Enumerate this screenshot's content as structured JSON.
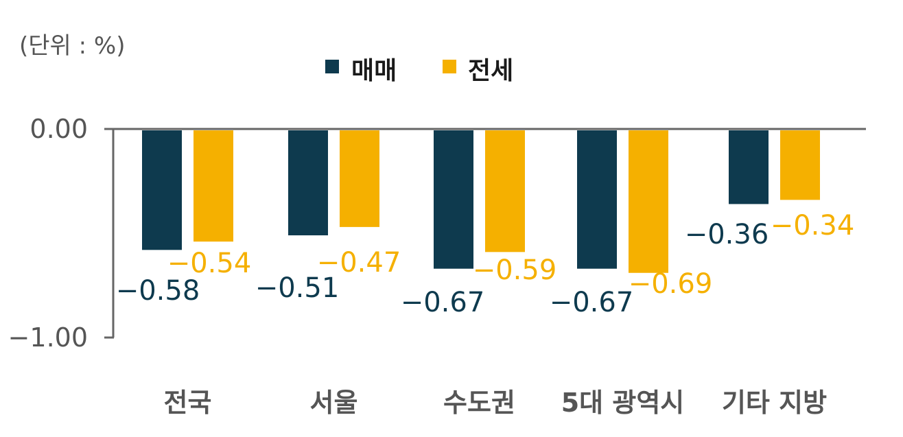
{
  "chart_data": {
    "type": "bar",
    "unit_label": "(단위 : %)",
    "categories": [
      "전국",
      "서울",
      "수도권",
      "5대 광역시",
      "기타 지방"
    ],
    "series": [
      {
        "name": "매매",
        "color": "#0e3a4e",
        "values": [
          -0.58,
          -0.51,
          -0.67,
          -0.67,
          -0.36
        ],
        "labels": [
          "−0.58",
          "−0.51",
          "−0.67",
          "−0.67",
          "−0.36"
        ]
      },
      {
        "name": "전세",
        "color": "#f5b000",
        "values": [
          -0.54,
          -0.47,
          -0.59,
          -0.69,
          -0.34
        ],
        "labels": [
          "−0.54",
          "−0.47",
          "−0.59",
          "−0.69",
          "−0.34"
        ]
      }
    ],
    "yticks": [
      {
        "value": 0,
        "label": "0.00"
      },
      {
        "value": -1,
        "label": "−1.00"
      }
    ],
    "ylim": [
      -1,
      0
    ],
    "legend": "top-center"
  }
}
